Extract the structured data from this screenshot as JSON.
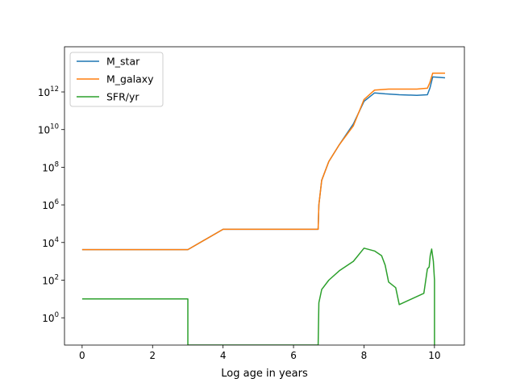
{
  "chart_data": {
    "type": "line",
    "title": "",
    "xlabel": "Log age in years",
    "ylabel": "",
    "xlim": [
      -0.5,
      10.85
    ],
    "ylim_log10": [
      -1.45,
      14.4
    ],
    "yscale": "log",
    "xticks": [
      0,
      2,
      4,
      6,
      8,
      10
    ],
    "yticks": [
      {
        "base": "10",
        "exp": "0",
        "value_log10": 0
      },
      {
        "base": "10",
        "exp": "2",
        "value_log10": 2
      },
      {
        "base": "10",
        "exp": "4",
        "value_log10": 4
      },
      {
        "base": "10",
        "exp": "6",
        "value_log10": 6
      },
      {
        "base": "10",
        "exp": "8",
        "value_log10": 8
      },
      {
        "base": "10",
        "exp": "10",
        "value_log10": 10
      },
      {
        "base": "10",
        "exp": "12",
        "value_log10": 12
      }
    ],
    "grid": false,
    "legend_position": "top-left",
    "series": [
      {
        "name": "M_star",
        "color": "#1f77b4",
        "x": [
          0,
          3.0,
          4.0,
          6.7,
          6.72,
          6.8,
          7.0,
          7.3,
          7.7,
          8.0,
          8.3,
          8.6,
          9.0,
          9.5,
          9.8,
          9.87,
          9.95,
          10.3
        ],
        "y_log10": [
          3.62,
          3.62,
          4.7,
          4.7,
          6.0,
          7.3,
          8.3,
          9.2,
          10.3,
          11.5,
          11.95,
          11.9,
          11.85,
          11.82,
          11.85,
          12.2,
          12.8,
          12.75
        ]
      },
      {
        "name": "M_galaxy",
        "color": "#ff7f0e",
        "x": [
          0,
          3.0,
          4.0,
          6.7,
          6.72,
          6.8,
          7.0,
          7.3,
          7.7,
          8.0,
          8.3,
          8.7,
          9.0,
          9.5,
          9.8,
          9.87,
          9.95,
          10.3
        ],
        "y_log10": [
          3.62,
          3.62,
          4.7,
          4.7,
          6.0,
          7.3,
          8.3,
          9.2,
          10.2,
          11.6,
          12.1,
          12.15,
          12.15,
          12.15,
          12.2,
          12.5,
          13.0,
          13.0
        ]
      },
      {
        "name": "SFR/yr",
        "color": "#2ca02c",
        "x": [
          0,
          3.0,
          3.0,
          6.7,
          6.72,
          6.8,
          7.0,
          7.3,
          7.7,
          8.0,
          8.3,
          8.5,
          8.6,
          8.7,
          8.9,
          9.0,
          9.7,
          9.8,
          9.85,
          9.88,
          9.92,
          9.97,
          10.0,
          10.0
        ],
        "y_log10": [
          1.0,
          1.0,
          -1.45,
          -1.45,
          0.8,
          1.5,
          2.0,
          2.5,
          3.0,
          3.7,
          3.55,
          3.3,
          2.8,
          1.9,
          1.6,
          0.7,
          1.3,
          2.6,
          2.7,
          3.3,
          3.65,
          3.0,
          2.0,
          -1.45
        ]
      }
    ]
  }
}
